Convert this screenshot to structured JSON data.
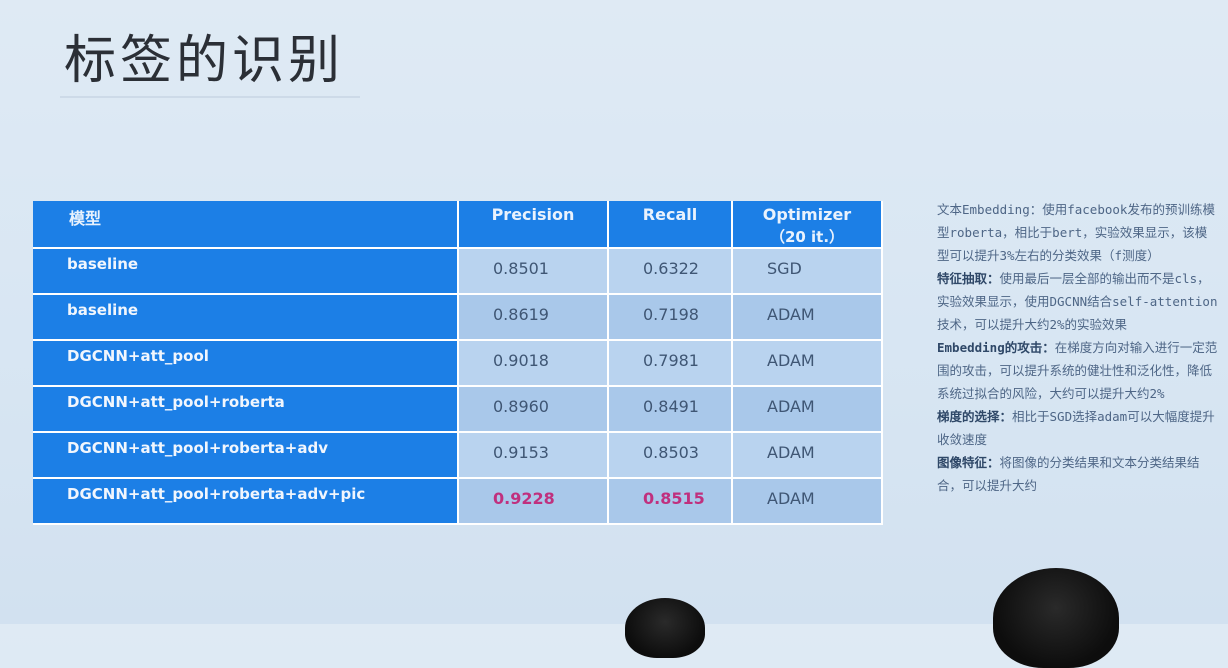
{
  "slide": {
    "title": "标签的识别"
  },
  "table": {
    "headers": {
      "model": "模型",
      "precision": "Precision",
      "recall": "Recall",
      "optimizer": "Optimizer",
      "optimizer_sub": "（20 it.）"
    },
    "rows": [
      {
        "model": "baseline",
        "precision": "0.8501",
        "recall": "0.6322",
        "optimizer": "SGD"
      },
      {
        "model": "baseline",
        "precision": "0.8619",
        "recall": "0.7198",
        "optimizer": "ADAM"
      },
      {
        "model": "DGCNN+att_pool",
        "precision": "0.9018",
        "recall": "0.7981",
        "optimizer": "ADAM"
      },
      {
        "model": "DGCNN+att_pool+roberta",
        "precision": "0.8960",
        "recall": "0.8491",
        "optimizer": "ADAM"
      },
      {
        "model": "DGCNN+att_pool+roberta+adv",
        "precision": "0.9153",
        "recall": "0.8503",
        "optimizer": "ADAM"
      },
      {
        "model": "DGCNN+att_pool+roberta+adv+pic",
        "precision": "0.9228",
        "recall": "0.8515",
        "optimizer": "ADAM"
      }
    ],
    "highlight_color": "#c0307e",
    "header_color": "#1c7fe6"
  },
  "notes": {
    "embedding_label": "文本Embedding：",
    "embedding_text": "使用facebook发布的预训练模型roberta，相比于bert，实验效果显示，该模型可以提升3%左右的分类效果（f测度）",
    "feature_label": "特征抽取：",
    "feature_text": "使用最后一层全部的输出而不是cls，实验效果显示，使用DGCNN结合self-attention技术，可以提升大约2%的实验效果",
    "attack_label": "Embedding的攻击：",
    "attack_text": "在梯度方向对输入进行一定范围的攻击，可以提升系统的健壮性和泛化性，降低系统过拟合的风险，大约可以提升大约2%",
    "grad_label": "梯度的选择：",
    "grad_text": "相比于SGD选择adam可以大幅度提升收敛速度",
    "image_label": "图像特征：",
    "image_text": "将图像的分类结果和文本分类结果结合，可以提升大约"
  }
}
